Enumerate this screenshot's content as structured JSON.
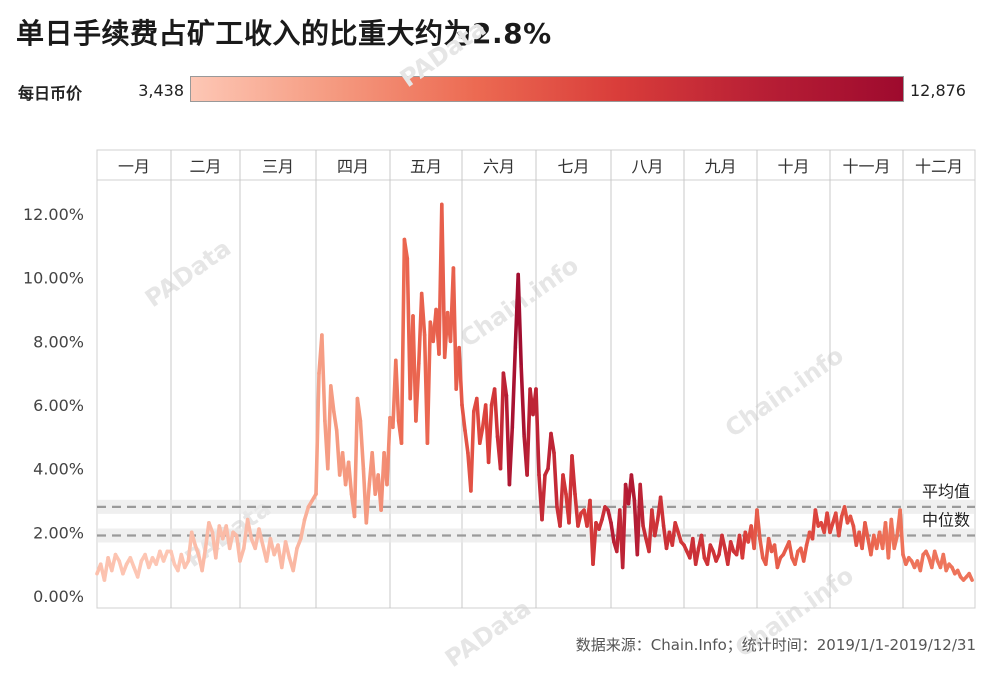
{
  "title": "单日手续费占矿工收入的比重大约为2.8%",
  "legend": {
    "label": "每日币价",
    "min": "3,438",
    "max": "12,876"
  },
  "source": "数据来源：Chain.Info；统计时间：2019/1/1-2019/12/31",
  "watermarks": [
    {
      "text": "PAData",
      "icon": "padata-logo-icon"
    },
    {
      "text": "PAData",
      "icon": "padata-logo-icon"
    },
    {
      "text": "Chain.info",
      "icon": "chaininfo-logo-icon"
    },
    {
      "text": "Chain.info",
      "icon": "chaininfo-logo-icon"
    },
    {
      "text": "PAData",
      "icon": "padata-logo-icon"
    },
    {
      "text": "PAData",
      "icon": "padata-logo-icon"
    },
    {
      "text": "Chain.info",
      "icon": "chaininfo-logo-icon"
    }
  ],
  "chart_data": {
    "type": "line",
    "x_unit": "month",
    "categories": [
      "一月",
      "二月",
      "三月",
      "四月",
      "五月",
      "六月",
      "七月",
      "八月",
      "九月",
      "十月",
      "十一月",
      "十二月"
    ],
    "y_ticks": [
      "0.00%",
      "2.00%",
      "4.00%",
      "6.00%",
      "8.00%",
      "10.00%",
      "12.00%"
    ],
    "ylim": [
      0,
      12.6
    ],
    "reference_lines": [
      {
        "label": "平均值",
        "value": 2.8
      },
      {
        "label": "中位数",
        "value": 1.9
      }
    ],
    "color_scale": {
      "min_value": 3438,
      "max_value": 12876,
      "min_color": "#fdc7b5",
      "max_color": "#9e0a2e"
    },
    "series": [
      {
        "x": [
          0.0,
          0.05,
          0.1,
          0.15,
          0.2,
          0.25,
          0.3,
          0.35,
          0.4,
          0.45,
          0.5,
          0.55,
          0.6,
          0.65,
          0.7,
          0.75,
          0.8,
          0.85,
          0.9,
          0.95
        ],
        "y": [
          0.7,
          1.0,
          0.5,
          1.2,
          0.8,
          1.3,
          1.1,
          0.7,
          1.0,
          1.2,
          0.9,
          0.6,
          1.1,
          1.3,
          0.9,
          1.2,
          1.0,
          1.4,
          1.1,
          1.4
        ],
        "price": [
          3800,
          3700,
          3600,
          3650,
          3700,
          3600,
          3550,
          3500,
          3600,
          3550,
          3450,
          3500,
          3450,
          3500,
          3550,
          3450,
          3500,
          3450,
          3500,
          3500
        ]
      },
      {
        "x": [
          1.0,
          1.05,
          1.1,
          1.15,
          1.2,
          1.25,
          1.3,
          1.35,
          1.4,
          1.45,
          1.5,
          1.55,
          1.6,
          1.65,
          1.7,
          1.75,
          1.8,
          1.85,
          1.9,
          1.95
        ],
        "y": [
          1.4,
          1.0,
          0.8,
          1.3,
          0.9,
          1.1,
          2.0,
          1.6,
          1.3,
          0.8,
          1.5,
          2.3,
          2.0,
          1.2,
          2.2,
          1.8,
          2.2,
          1.5,
          2.0,
          1.9
        ],
        "price": [
          3500,
          3450,
          3500,
          3550,
          3600,
          3700,
          3800,
          3900,
          3850,
          3900,
          3950,
          4000,
          3900,
          3950,
          3850,
          3900,
          3950,
          3850,
          3900,
          4000
        ]
      },
      {
        "x": [
          2.0,
          2.05,
          2.1,
          2.15,
          2.2,
          2.25,
          2.3,
          2.35,
          2.4,
          2.45,
          2.5,
          2.55,
          2.6,
          2.65,
          2.7,
          2.75,
          2.8,
          2.85,
          2.9,
          2.95
        ],
        "y": [
          1.1,
          1.5,
          2.4,
          1.8,
          1.5,
          2.1,
          1.6,
          1.1,
          1.8,
          1.3,
          1.6,
          0.9,
          1.7,
          1.2,
          0.8,
          1.5,
          1.8,
          2.4,
          2.8,
          3.0
        ],
        "price": [
          3900,
          3950,
          4000,
          3950,
          3900,
          4000,
          4050,
          3950,
          4000,
          3950,
          4050,
          4000,
          4050,
          4000,
          4100,
          4050,
          4200,
          4300,
          4500,
          4800
        ]
      },
      {
        "x": [
          3.0,
          3.04,
          3.08,
          3.12,
          3.16,
          3.2,
          3.24,
          3.28,
          3.32,
          3.36,
          3.4,
          3.44,
          3.48,
          3.52,
          3.56,
          3.6,
          3.64,
          3.68,
          3.72,
          3.76,
          3.8,
          3.84,
          3.88,
          3.92,
          3.96
        ],
        "y": [
          3.2,
          7.0,
          8.2,
          5.5,
          4.0,
          6.6,
          5.8,
          5.2,
          3.8,
          4.5,
          3.5,
          4.2,
          3.2,
          2.5,
          6.2,
          5.5,
          4.0,
          2.3,
          3.5,
          4.5,
          3.2,
          3.8,
          2.7,
          4.5,
          3.5
        ],
        "price": [
          5000,
          5100,
          5200,
          5200,
          5250,
          5200,
          5250,
          5300,
          5300,
          5350,
          5350,
          5400,
          5350,
          5400,
          5500,
          5450,
          5300,
          5250,
          5400,
          5500,
          5600,
          5700,
          5800,
          5900,
          6000
        ]
      },
      {
        "x": [
          4.0,
          4.04,
          4.08,
          4.12,
          4.16,
          4.2,
          4.24,
          4.28,
          4.32,
          4.36,
          4.4,
          4.44,
          4.48,
          4.52,
          4.56,
          4.6,
          4.64,
          4.68,
          4.72,
          4.76,
          4.8,
          4.84,
          4.88,
          4.92,
          4.96
        ],
        "y": [
          5.6,
          5.3,
          7.4,
          5.5,
          4.8,
          11.2,
          10.6,
          6.2,
          8.8,
          5.5,
          7.3,
          9.5,
          8.2,
          4.8,
          8.6,
          8.0,
          9.0,
          7.6,
          12.3,
          7.5,
          8.9,
          8.0,
          10.3,
          6.5,
          7.8
        ],
        "price": [
          6200,
          6500,
          7000,
          7200,
          7500,
          7800,
          8000,
          7900,
          8000,
          7800,
          7900,
          8100,
          8000,
          7700,
          7900,
          8000,
          8100,
          8000,
          8200,
          8100,
          8000,
          7900,
          8100,
          8000,
          8300
        ]
      },
      {
        "x": [
          5.0,
          5.04,
          5.08,
          5.12,
          5.16,
          5.2,
          5.24,
          5.28,
          5.32,
          5.36,
          5.4,
          5.44,
          5.48,
          5.52,
          5.56,
          5.6,
          5.64,
          5.68,
          5.72,
          5.76,
          5.8,
          5.84,
          5.88,
          5.92,
          5.96
        ],
        "y": [
          6.0,
          5.2,
          4.5,
          3.3,
          5.8,
          6.2,
          4.8,
          5.3,
          6.0,
          4.2,
          6.0,
          6.5,
          5.0,
          4.0,
          7.0,
          6.3,
          3.5,
          5.3,
          7.8,
          10.1,
          7.2,
          5.0,
          3.8,
          6.5,
          5.7
        ],
        "price": [
          8500,
          8600,
          8700,
          8600,
          8800,
          9000,
          9200,
          9000,
          9300,
          9500,
          9700,
          10000,
          10300,
          10600,
          11000,
          11500,
          11800,
          12200,
          12500,
          12876,
          12500,
          12000,
          11500,
          11200,
          11000
        ]
      },
      {
        "x": [
          6.0,
          6.04,
          6.08,
          6.12,
          6.16,
          6.2,
          6.24,
          6.28,
          6.32,
          6.36,
          6.4,
          6.44,
          6.48,
          6.52,
          6.56,
          6.6,
          6.64,
          6.68,
          6.72,
          6.76,
          6.8,
          6.84,
          6.88,
          6.92,
          6.96
        ],
        "y": [
          6.5,
          3.8,
          2.4,
          3.8,
          4.0,
          5.1,
          4.5,
          2.8,
          2.2,
          3.8,
          3.2,
          2.3,
          4.4,
          3.2,
          2.2,
          2.6,
          2.7,
          2.2,
          3.0,
          1.0,
          2.3,
          2.1,
          2.4,
          2.8,
          2.7
        ],
        "price": [
          11200,
          11000,
          10500,
          10800,
          11000,
          11200,
          11000,
          10500,
          10300,
          10200,
          10000,
          9800,
          10500,
          10300,
          10000,
          9800,
          9600,
          9700,
          9900,
          9800,
          10100,
          10200,
          10300,
          10500,
          10600
        ]
      },
      {
        "x": [
          7.0,
          7.04,
          7.08,
          7.12,
          7.16,
          7.2,
          7.24,
          7.28,
          7.32,
          7.36,
          7.4,
          7.44,
          7.48,
          7.52,
          7.56,
          7.6,
          7.64,
          7.68,
          7.72,
          7.76,
          7.8,
          7.84,
          7.88,
          7.92,
          7.96
        ],
        "y": [
          2.3,
          1.7,
          1.4,
          2.7,
          0.9,
          3.5,
          2.9,
          3.8,
          3.0,
          1.3,
          3.5,
          2.2,
          1.8,
          1.4,
          2.7,
          1.9,
          2.4,
          3.1,
          2.2,
          1.5,
          2.0,
          1.6,
          2.3,
          2.0,
          1.7
        ],
        "price": [
          11800,
          11500,
          11200,
          11000,
          10800,
          11500,
          11800,
          11700,
          11900,
          11600,
          11500,
          10800,
          10500,
          10300,
          10200,
          10100,
          10400,
          10200,
          10300,
          10400,
          10100,
          10200,
          10000,
          9900,
          9800
        ]
      },
      {
        "x": [
          8.0,
          8.04,
          8.08,
          8.12,
          8.16,
          8.2,
          8.24,
          8.28,
          8.32,
          8.36,
          8.4,
          8.44,
          8.48,
          8.52,
          8.56,
          8.6,
          8.64,
          8.68,
          8.72,
          8.76,
          8.8,
          8.84,
          8.88,
          8.92,
          8.96
        ],
        "y": [
          1.6,
          1.4,
          1.2,
          1.8,
          1.0,
          1.5,
          1.9,
          1.2,
          1.0,
          1.6,
          1.4,
          1.1,
          1.3,
          1.9,
          1.5,
          1.0,
          1.7,
          1.4,
          1.3,
          1.9,
          1.2,
          2.0,
          1.7,
          2.2,
          1.5
        ],
        "price": [
          10000,
          10100,
          10200,
          10500,
          10400,
          10300,
          10200,
          10000,
          10100,
          10300,
          10200,
          10100,
          10400,
          10300,
          10200,
          10100,
          10300,
          10200,
          10100,
          10000,
          9800,
          9600,
          9300,
          9000,
          8600
        ]
      },
      {
        "x": [
          9.0,
          9.04,
          9.08,
          9.12,
          9.16,
          9.2,
          9.24,
          9.28,
          9.32,
          9.36,
          9.4,
          9.44,
          9.48,
          9.52,
          9.56,
          9.6,
          9.64,
          9.68,
          9.72,
          9.76,
          9.8,
          9.84,
          9.88,
          9.92,
          9.96
        ],
        "y": [
          2.7,
          1.8,
          1.2,
          1.0,
          1.8,
          1.4,
          1.6,
          0.9,
          1.2,
          1.3,
          1.5,
          1.7,
          1.2,
          1.0,
          1.4,
          1.5,
          1.1,
          1.6,
          2.0,
          1.8,
          2.7,
          2.2,
          2.3,
          2.0,
          2.6
        ],
        "price": [
          8300,
          8200,
          8100,
          8200,
          8300,
          8400,
          8200,
          8100,
          8300,
          8400,
          8200,
          8300,
          8100,
          8000,
          7800,
          7900,
          8100,
          8300,
          8500,
          9000,
          9500,
          9200,
          9300,
          9100,
          9200
        ]
      },
      {
        "x": [
          10.0,
          10.04,
          10.08,
          10.12,
          10.16,
          10.2,
          10.24,
          10.28,
          10.32,
          10.36,
          10.4,
          10.44,
          10.48,
          10.52,
          10.56,
          10.6,
          10.64,
          10.68,
          10.72,
          10.76,
          10.8,
          10.84,
          10.88,
          10.92,
          10.96
        ],
        "y": [
          2.0,
          2.3,
          2.6,
          1.9,
          2.5,
          2.8,
          2.3,
          2.5,
          2.2,
          1.6,
          2.0,
          1.5,
          2.3,
          1.8,
          1.3,
          1.9,
          1.5,
          2.0,
          1.5,
          2.3,
          1.2,
          2.4,
          1.5,
          1.9,
          2.7
        ],
        "price": [
          9200,
          9300,
          9100,
          9000,
          8900,
          8800,
          8700,
          8600,
          8700,
          8600,
          8500,
          8400,
          8300,
          8200,
          8000,
          7800,
          7700,
          7600,
          7500,
          7400,
          7300,
          7200,
          7100,
          7300,
          7200
        ]
      },
      {
        "x": [
          11.0,
          11.04,
          11.08,
          11.12,
          11.16,
          11.2,
          11.24,
          11.28,
          11.32,
          11.36,
          11.4,
          11.44,
          11.48,
          11.52,
          11.56,
          11.6,
          11.64,
          11.68,
          11.72,
          11.76,
          11.8,
          11.84,
          11.88,
          11.92,
          11.96
        ],
        "y": [
          1.3,
          1.0,
          1.2,
          1.1,
          0.9,
          1.1,
          0.8,
          1.3,
          1.4,
          1.2,
          0.9,
          1.4,
          1.1,
          0.9,
          1.3,
          0.8,
          1.0,
          0.9,
          0.7,
          0.8,
          0.6,
          0.5,
          0.6,
          0.7,
          0.5
        ],
        "price": [
          7300,
          7400,
          7300,
          7200,
          7200,
          7100,
          7100,
          7300,
          7400,
          7300,
          7200,
          7200,
          7100,
          7100,
          7200,
          7100,
          7000,
          7200,
          7300,
          7300,
          7200,
          7200,
          7200,
          7200,
          7200
        ]
      }
    ]
  }
}
